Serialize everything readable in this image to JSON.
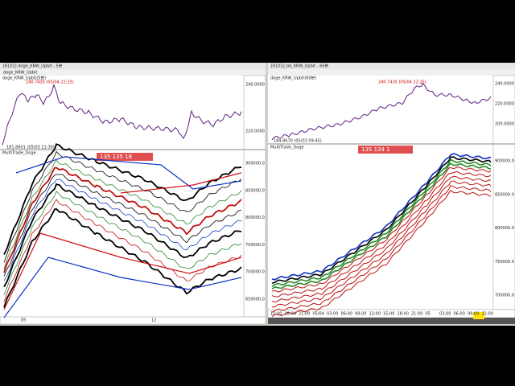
{
  "left_window": {
    "title": "[6101] doge_KRW_Upbit - 5분",
    "symbol": "doge_KRW_Upbit",
    "top_pane_info": "doge_KRW_Upbit(5분)",
    "high_note": "240.7435 (05/04 22:25)",
    "low_note": "181.8601 (05/03 21:30)",
    "lower_pane_info": "MultiTrade_Doge",
    "price_tag": "135  135  18",
    "price_axis_top": [
      "240.0000",
      "220.0000"
    ],
    "price_axis_bottom": [
      "900000.0",
      "850000.0",
      "800000.0",
      "750000.0",
      "700000.0",
      "650000.0"
    ],
    "x_axis": [
      "05",
      "12"
    ]
  },
  "right_window": {
    "title": "[6101] sol_KRW_Upbit - 60분",
    "top_pane_info": "doge_KRW_Upbit(60분)",
    "high_note": "240.7435 (05/04 22:25)",
    "low_note": "184.8670 (05/03 09:45)",
    "lower_pane_info": "MultiTrade_Doge",
    "price_tag": "135  134  1",
    "price_axis_top": [
      "240.0000",
      "220.0000",
      "200.0000"
    ],
    "price_axis_bottom": [
      "900000.0",
      "850000.0",
      "800000.0",
      "750000.0",
      "700000.0"
    ],
    "x_axis": [
      "12:00",
      "18:00",
      "21:00",
      "05/04",
      "03:00",
      "06:00",
      "09:00",
      "12:00",
      "15:00",
      "18:00",
      "21:00",
      "05",
      "03:00",
      "06:00",
      "09:00",
      "12:00"
    ]
  }
}
